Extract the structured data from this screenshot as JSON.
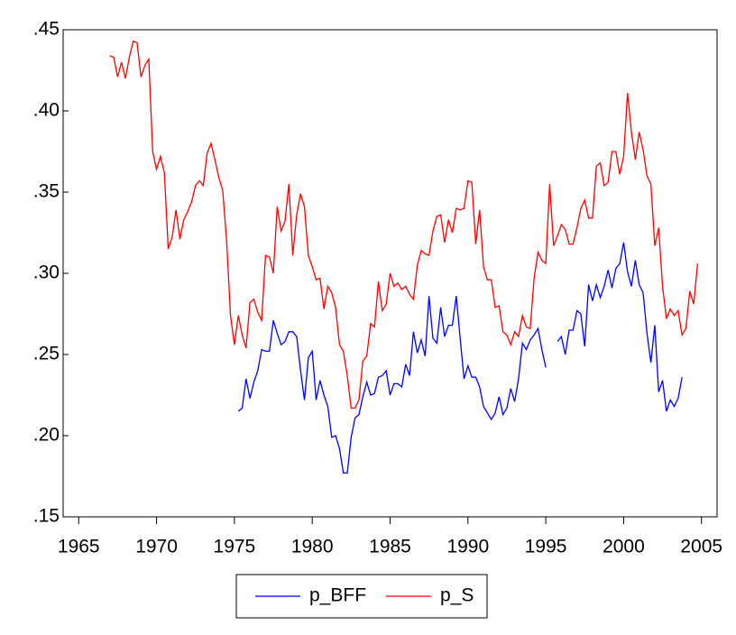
{
  "chart_data": {
    "type": "line",
    "xlim": [
      1964,
      2006
    ],
    "ylim": [
      0.15,
      0.45
    ],
    "xticks": [
      1965,
      1970,
      1975,
      1980,
      1985,
      1990,
      1995,
      2000,
      2005
    ],
    "yticks": [
      {
        "value": 0.15,
        "label": ".15"
      },
      {
        "value": 0.2,
        "label": ".20"
      },
      {
        "value": 0.25,
        "label": ".25"
      },
      {
        "value": 0.3,
        "label": ".30"
      },
      {
        "value": 0.35,
        "label": ".35"
      },
      {
        "value": 0.4,
        "label": ".40"
      },
      {
        "value": 0.45,
        "label": ".45"
      }
    ],
    "legend": "bottom",
    "x": [
      1967,
      1967.25,
      1967.5,
      1967.75,
      1968,
      1968.25,
      1968.5,
      1968.75,
      1969,
      1969.25,
      1969.5,
      1969.75,
      1970,
      1970.25,
      1970.5,
      1970.75,
      1971,
      1971.25,
      1971.5,
      1971.75,
      1972,
      1972.25,
      1972.5,
      1972.75,
      1973,
      1973.25,
      1973.5,
      1973.75,
      1974,
      1974.25,
      1974.5,
      1974.75,
      1975,
      1975.25,
      1975.5,
      1975.75,
      1976,
      1976.25,
      1976.5,
      1976.75,
      1977,
      1977.25,
      1977.5,
      1977.75,
      1978,
      1978.25,
      1978.5,
      1978.75,
      1979,
      1979.25,
      1979.5,
      1979.75,
      1980,
      1980.25,
      1980.5,
      1980.75,
      1981,
      1981.25,
      1981.5,
      1981.75,
      1982,
      1982.25,
      1982.5,
      1982.75,
      1983,
      1983.25,
      1983.5,
      1983.75,
      1984,
      1984.25,
      1984.5,
      1984.75,
      1985,
      1985.25,
      1985.5,
      1985.75,
      1986,
      1986.25,
      1986.5,
      1986.75,
      1987,
      1987.25,
      1987.5,
      1987.75,
      1988,
      1988.25,
      1988.5,
      1988.75,
      1989,
      1989.25,
      1989.5,
      1989.75,
      1990,
      1990.25,
      1990.5,
      1990.75,
      1991,
      1991.25,
      1991.5,
      1991.75,
      1992,
      1992.25,
      1992.5,
      1992.75,
      1993,
      1993.25,
      1993.5,
      1993.75,
      1994,
      1994.25,
      1994.5,
      1994.75,
      1995,
      1995.25,
      1995.5,
      1995.75,
      1996,
      1996.25,
      1996.5,
      1996.75,
      1997,
      1997.25,
      1997.5,
      1997.75,
      1998,
      1998.25,
      1998.5,
      1998.75,
      1999,
      1999.25,
      1999.5,
      1999.75,
      2000,
      2000.25,
      2000.5,
      2000.75,
      2001,
      2001.25,
      2001.5,
      2001.75,
      2002,
      2002.25,
      2002.5,
      2002.75,
      2003,
      2003.25,
      2003.5,
      2003.75,
      2004,
      2004.25,
      2004.5,
      2004.75
    ],
    "series": [
      {
        "name": "p_BFF",
        "color": "#0000ff",
        "values": [
          null,
          null,
          null,
          null,
          null,
          null,
          null,
          null,
          null,
          null,
          null,
          null,
          null,
          null,
          null,
          null,
          null,
          null,
          null,
          null,
          null,
          null,
          null,
          null,
          null,
          null,
          null,
          null,
          null,
          null,
          null,
          null,
          null,
          0.215,
          0.217,
          0.235,
          0.223,
          0.233,
          0.24,
          0.253,
          0.252,
          0.252,
          0.271,
          0.263,
          0.256,
          0.258,
          0.264,
          0.264,
          0.261,
          0.24,
          0.222,
          0.248,
          0.252,
          0.222,
          0.234,
          0.225,
          0.218,
          0.199,
          0.2,
          0.192,
          0.177,
          0.177,
          0.199,
          0.211,
          0.213,
          0.224,
          0.233,
          0.225,
          0.226,
          0.236,
          0.237,
          0.24,
          0.225,
          0.232,
          0.232,
          0.23,
          0.244,
          0.237,
          0.264,
          0.251,
          0.259,
          0.249,
          0.286,
          0.26,
          0.257,
          0.279,
          0.261,
          0.268,
          0.268,
          0.286,
          0.26,
          0.235,
          0.243,
          0.236,
          0.236,
          0.23,
          0.218,
          0.214,
          0.21,
          0.214,
          0.224,
          0.213,
          0.217,
          0.229,
          0.221,
          0.235,
          0.257,
          0.253,
          0.259,
          0.262,
          0.266,
          0.253,
          0.242,
          null,
          null,
          0.258,
          0.261,
          0.25,
          0.265,
          0.265,
          0.277,
          0.275,
          0.255,
          0.293,
          0.283,
          0.293,
          0.285,
          0.292,
          0.302,
          0.291,
          0.303,
          0.306,
          0.319,
          0.301,
          0.292,
          0.308,
          0.293,
          0.288,
          0.263,
          0.245,
          0.268,
          0.227,
          0.234,
          0.215,
          0.222,
          0.218,
          0.223,
          0.236,
          null,
          null,
          null,
          null
        ]
      },
      {
        "name": "p_S",
        "color": "#ff0000",
        "values": [
          0.434,
          0.433,
          0.421,
          0.43,
          0.42,
          0.433,
          0.443,
          0.442,
          0.421,
          0.428,
          0.432,
          0.375,
          0.364,
          0.372,
          0.362,
          0.315,
          0.322,
          0.339,
          0.321,
          0.333,
          0.338,
          0.344,
          0.354,
          0.357,
          0.354,
          0.374,
          0.38,
          0.37,
          0.359,
          0.351,
          0.32,
          0.274,
          0.256,
          0.274,
          0.262,
          0.254,
          0.282,
          0.284,
          0.276,
          0.271,
          0.311,
          0.31,
          0.3,
          0.341,
          0.326,
          0.332,
          0.355,
          0.311,
          0.336,
          0.349,
          0.341,
          0.311,
          0.304,
          0.296,
          0.297,
          0.278,
          0.292,
          0.288,
          0.279,
          0.256,
          0.252,
          0.237,
          0.217,
          0.217,
          0.222,
          0.246,
          0.249,
          0.269,
          0.267,
          0.295,
          0.277,
          0.281,
          0.3,
          0.292,
          0.294,
          0.29,
          0.292,
          0.287,
          0.284,
          0.305,
          0.314,
          0.312,
          0.311,
          0.326,
          0.335,
          0.336,
          0.319,
          0.333,
          0.325,
          0.34,
          0.339,
          0.34,
          0.357,
          0.356,
          0.318,
          0.339,
          0.304,
          0.296,
          0.296,
          0.279,
          0.28,
          0.264,
          0.262,
          0.256,
          0.264,
          0.261,
          0.274,
          0.267,
          0.266,
          0.297,
          0.313,
          0.308,
          0.306,
          0.355,
          0.317,
          0.323,
          0.33,
          0.327,
          0.318,
          0.318,
          0.328,
          0.34,
          0.345,
          0.334,
          0.334,
          0.366,
          0.368,
          0.354,
          0.356,
          0.375,
          0.375,
          0.361,
          0.372,
          0.411,
          0.387,
          0.37,
          0.387,
          0.376,
          0.36,
          0.355,
          0.317,
          0.328,
          0.292,
          0.272,
          0.278,
          0.274,
          0.277,
          0.262,
          0.266,
          0.289,
          0.281,
          0.306
        ]
      }
    ]
  }
}
